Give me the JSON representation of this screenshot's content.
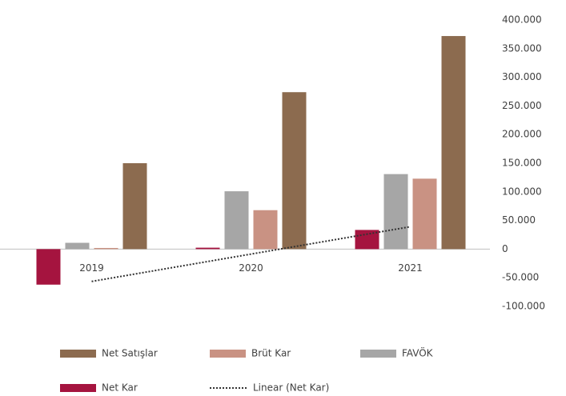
{
  "chart_data": {
    "type": "bar",
    "categories": [
      "2019",
      "2020",
      "2021"
    ],
    "series": [
      {
        "name": "Net Satışlar",
        "color": "#8c6b4f",
        "values": [
          150000,
          274000,
          372000
        ]
      },
      {
        "name": "Brüt Kar",
        "color": "#c99283",
        "values": [
          2000,
          68000,
          123000
        ]
      },
      {
        "name": "FAVÖK",
        "color": "#a6a6a6",
        "values": [
          11000,
          101000,
          131000
        ]
      },
      {
        "name": "Net Kar",
        "color": "#a5143f",
        "values": [
          -62000,
          2500,
          33500
        ]
      }
    ],
    "trendline": {
      "name": "Linear (Net Kar)",
      "fits": "Net Kar",
      "color": "#333333"
    },
    "ylim": [
      -100000,
      400000
    ],
    "yticks": [
      {
        "value": -100000,
        "label": "-100.000"
      },
      {
        "value": -50000,
        "label": "-50.000"
      },
      0,
      {
        "value": 50000,
        "label": "50.000"
      },
      {
        "value": 100000,
        "label": "100.000"
      },
      {
        "value": 150000,
        "label": "150.000"
      },
      {
        "value": 200000,
        "label": "200.000"
      },
      {
        "value": 250000,
        "label": "250.000"
      },
      {
        "value": 300000,
        "label": "300.000"
      },
      {
        "value": 350000,
        "label": "350.000"
      },
      {
        "value": 400000,
        "label": "400.000"
      }
    ],
    "grid": false,
    "y_axis_side": "right"
  }
}
